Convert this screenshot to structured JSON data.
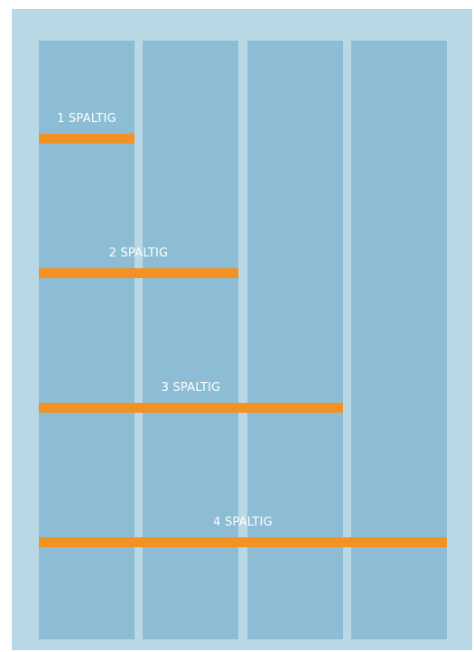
{
  "colors": {
    "background": "#b9d8e6",
    "column": "#8dbdd5",
    "bar": "#f39224",
    "label": "#ffffff"
  },
  "labels": [
    {
      "text": "1 SPALTIG"
    },
    {
      "text": "2 SPALTIG"
    },
    {
      "text": "3 SPALTIG"
    },
    {
      "text": "4 SPALTIG"
    }
  ]
}
